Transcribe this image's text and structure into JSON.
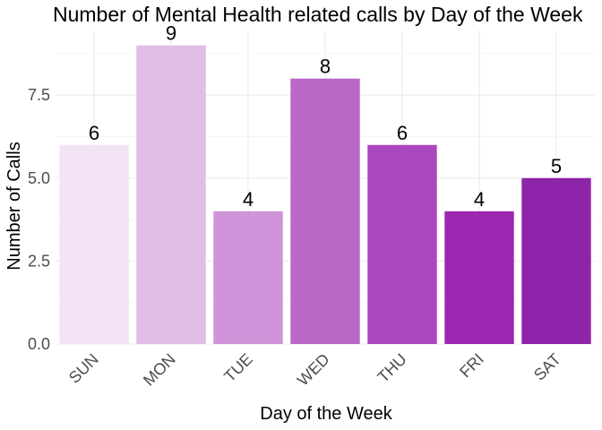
{
  "chart_data": {
    "type": "bar",
    "title": "Number of Mental Health related calls by Day of the Week",
    "xlabel": "Day of the Week",
    "ylabel": "Number of Calls",
    "categories": [
      "SUN",
      "MON",
      "TUE",
      "WED",
      "THU",
      "FRI",
      "SAT"
    ],
    "values": [
      6,
      9,
      4,
      8,
      6,
      4,
      5
    ],
    "data_labels": [
      "6",
      "9",
      "4",
      "8",
      "6",
      "4",
      "5"
    ],
    "colors": [
      "#f2e4f5",
      "#e1bde8",
      "#ce93d8",
      "#ba68c8",
      "#ab47bc",
      "#9c27b0",
      "#8e24aa"
    ],
    "ylim": [
      0,
      9.45
    ],
    "yticks": [
      0,
      2.5,
      5,
      7.5
    ],
    "ytick_labels": [
      "0.0",
      "2.5",
      "5.0",
      "7.5"
    ],
    "grid": true,
    "legend": "none"
  }
}
